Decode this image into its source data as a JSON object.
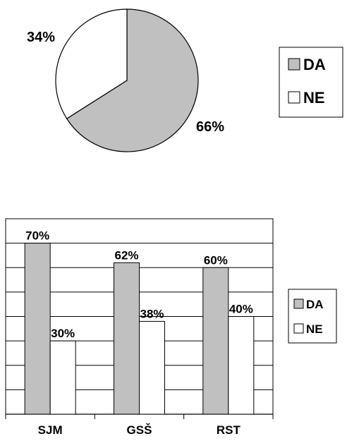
{
  "colors": {
    "da": "#c0c0c0",
    "ne": "#ffffff",
    "stroke": "#000000"
  },
  "chart_data": [
    {
      "type": "pie",
      "categories": [
        "DA",
        "NE"
      ],
      "values": [
        66,
        34
      ],
      "value_labels": [
        "66%",
        "34%"
      ],
      "start": "12 o'clock, clockwise",
      "legend": {
        "placement": "right",
        "entries": [
          "DA",
          "NE"
        ]
      },
      "title": ""
    },
    {
      "type": "bar",
      "categories": [
        "SJM",
        "GSŠ",
        "RST"
      ],
      "series": [
        {
          "name": "DA",
          "values": [
            70,
            62,
            60
          ],
          "value_labels": [
            "70%",
            "62%",
            "60%"
          ]
        },
        {
          "name": "NE",
          "values": [
            30,
            38,
            40
          ],
          "value_labels": [
            "30%",
            "38%",
            "40%"
          ]
        }
      ],
      "ylim": [
        0,
        80
      ],
      "grid": true,
      "legend": {
        "placement": "right",
        "entries": [
          "DA",
          "NE"
        ]
      },
      "title": "",
      "xlabel": "",
      "ylabel": ""
    }
  ]
}
